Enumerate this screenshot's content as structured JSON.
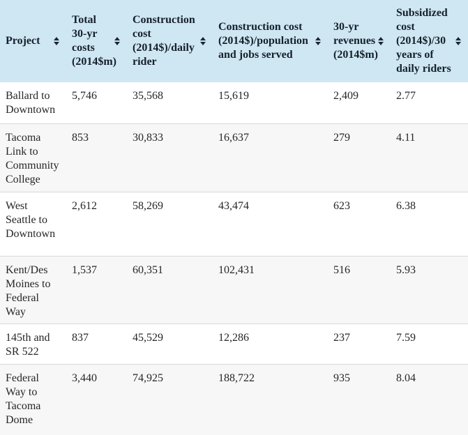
{
  "colors": {
    "header_bg": "#cfe7f3",
    "header_text": "#15202b",
    "body_text": "#262626",
    "stripe_bg": "#f7f7f8",
    "row_border": "#d9d9d9",
    "sort_icon": "#1c2733"
  },
  "chart_data": {
    "type": "table",
    "columns": [
      {
        "label": "Project",
        "lines": [
          "Project"
        ],
        "sortable": true
      },
      {
        "label": "Total 30-yr costs (2014$m)",
        "lines": [
          "Total",
          "30-yr",
          "costs",
          "(2014$m)"
        ],
        "sortable": true
      },
      {
        "label": "Construction cost (2014$)/daily rider",
        "lines": [
          "Construction",
          "cost",
          "(2014$)/daily",
          "rider"
        ],
        "sortable": true
      },
      {
        "label": "Construction cost (2014$)/population and jobs served",
        "lines": [
          "Construction cost",
          "(2014$)/population",
          "and jobs served"
        ],
        "sortable": true
      },
      {
        "label": "30-yr revenues (2014$m)",
        "lines": [
          "30-yr",
          "revenues",
          "(2014$m)"
        ],
        "sortable": true
      },
      {
        "label": "Subsidized cost (2014$)/30 years of daily riders",
        "lines": [
          "Subsidized",
          "cost",
          "(2014$)/30",
          "years of",
          "daily riders"
        ],
        "sortable": true
      }
    ],
    "rows": [
      {
        "project": "Ballard to Downtown",
        "cells": [
          "5,746",
          "35,568",
          "15,619",
          "2,409",
          "2.77"
        ]
      },
      {
        "project": "Tacoma Link to Community College",
        "cells": [
          "853",
          "30,833",
          "16,637",
          "279",
          "4.11"
        ]
      },
      {
        "project": "West Seattle to Downtown",
        "cells": [
          "2,612",
          "58,269",
          "43,474",
          "623",
          "6.38"
        ]
      },
      {
        "project": "Kent/Des Moines to Federal Way",
        "cells": [
          "1,537",
          "60,351",
          "102,431",
          "516",
          "5.93"
        ]
      },
      {
        "project": "145th and SR 522",
        "cells": [
          "837",
          "45,529",
          "12,286",
          "237",
          "7.59"
        ]
      },
      {
        "project": "Federal Way to Tacoma Dome",
        "cells": [
          "3,440",
          "74,925",
          "188,722",
          "935",
          "8.04"
        ]
      }
    ]
  }
}
